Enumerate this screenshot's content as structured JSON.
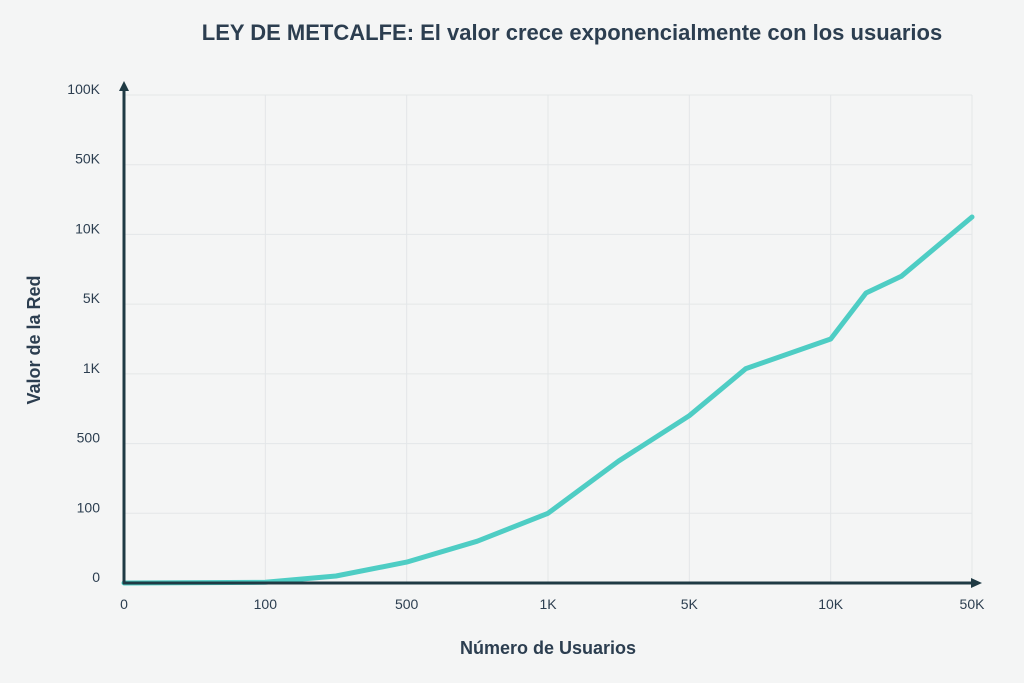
{
  "chart_data": {
    "type": "line",
    "title": "LEY DE METCALFE: El valor crece exponencialmente con los usuarios",
    "xlabel": "Número de Usuarios",
    "ylabel": "Valor de la Red",
    "x_tick_labels": [
      "0",
      "100",
      "500",
      "1K",
      "5K",
      "10K",
      "50K"
    ],
    "y_tick_labels": [
      "0",
      "100",
      "500",
      "1K",
      "5K",
      "10K",
      "50K",
      "100K"
    ],
    "grid": true,
    "series": [
      {
        "color": "#4ecdc4",
        "x": [
          0,
          100,
          300,
          500,
          750,
          1000,
          2000,
          3000,
          5000,
          7000,
          10000,
          20000,
          30000,
          50000
        ],
        "y": [
          0,
          1,
          10,
          30,
          60,
          100,
          250,
          400,
          700,
          1300,
          3000,
          5800,
          7000,
          20000
        ]
      }
    ]
  },
  "colors": {
    "background": "#f4f5f5",
    "axis": "#1f3a44",
    "line": "#4ecdc4",
    "text": "#2c3e50"
  }
}
